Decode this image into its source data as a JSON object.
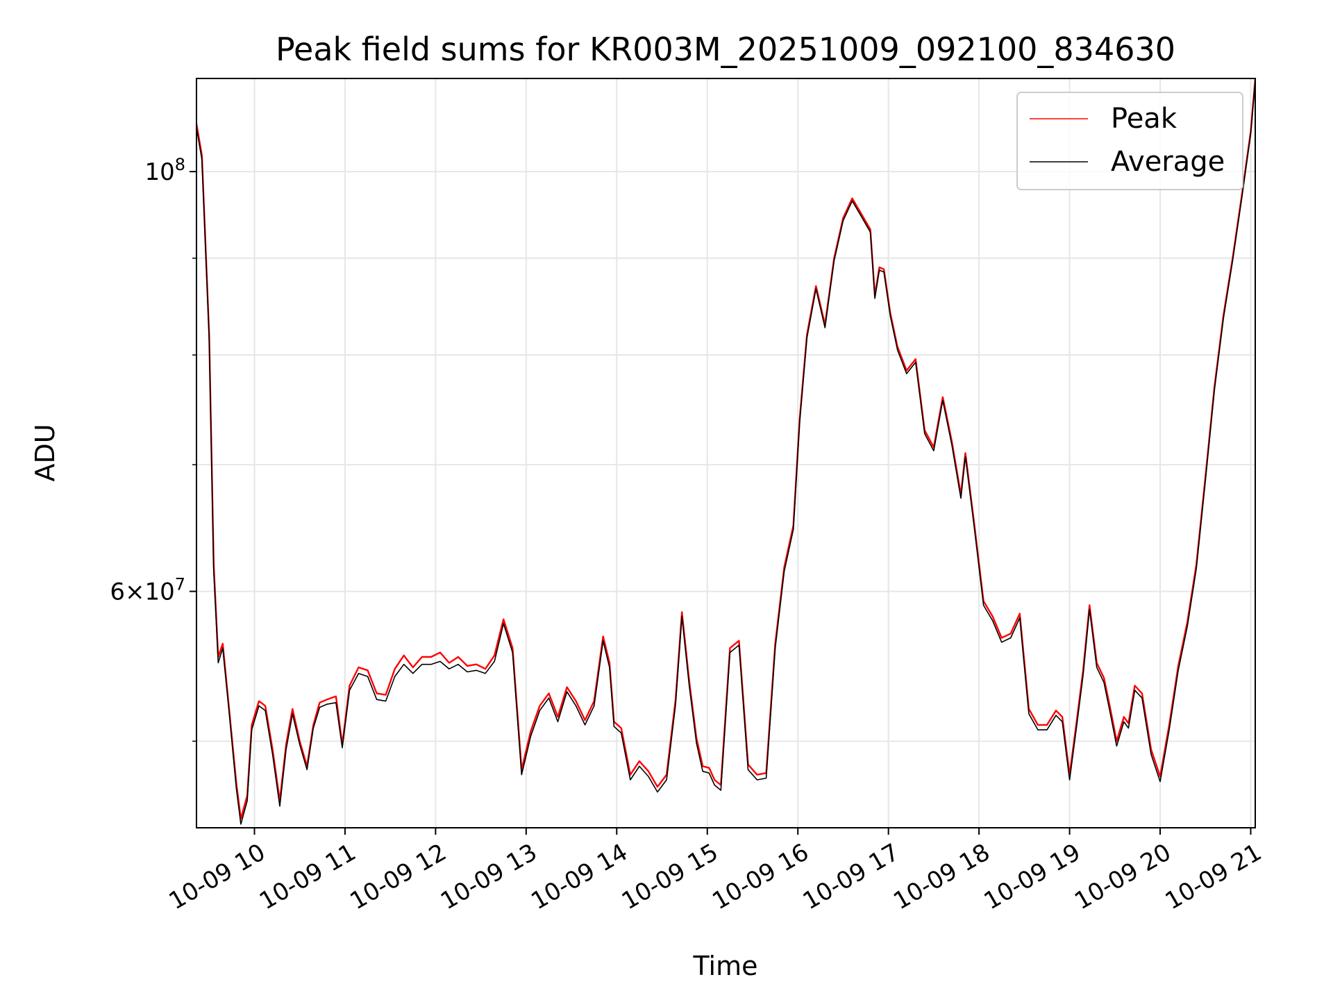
{
  "chart_data": {
    "type": "line",
    "title": "Peak field sums for KR003M_20251009_092100_834630",
    "xlabel": "Time",
    "ylabel": "ADU",
    "yscale": "log",
    "ylim": [
      45000000,
      112000000
    ],
    "xlim": [
      9.36,
      21.05
    ],
    "x_unit": "hour of 2025-10-09",
    "grid": true,
    "legend_position": "top-right",
    "x_tick_values": [
      10,
      11,
      12,
      13,
      14,
      15,
      16,
      17,
      18,
      19,
      20,
      21
    ],
    "x_tick_labels": [
      "10-09 10",
      "10-09 11",
      "10-09 12",
      "10-09 13",
      "10-09 14",
      "10-09 15",
      "10-09 16",
      "10-09 17",
      "10-09 18",
      "10-09 19",
      "10-09 20",
      "10-09 21"
    ],
    "y_major_ticks": [
      {
        "value": 60000000,
        "mantissa": "6",
        "exponent": "7"
      },
      {
        "value": 100000000,
        "mantissa": "",
        "exponent": "8"
      }
    ],
    "y_minor_ticks": [
      50000000,
      70000000,
      80000000,
      90000000
    ],
    "x": [
      9.36,
      9.42,
      9.5,
      9.55,
      9.6,
      9.65,
      9.72,
      9.8,
      9.85,
      9.92,
      9.97,
      10.05,
      10.12,
      10.2,
      10.28,
      10.35,
      10.42,
      10.5,
      10.58,
      10.65,
      10.72,
      10.8,
      10.9,
      10.97,
      11.05,
      11.15,
      11.25,
      11.35,
      11.45,
      11.55,
      11.65,
      11.75,
      11.85,
      11.95,
      12.05,
      12.15,
      12.25,
      12.35,
      12.45,
      12.55,
      12.65,
      12.75,
      12.85,
      12.95,
      13.05,
      13.15,
      13.25,
      13.35,
      13.45,
      13.55,
      13.65,
      13.75,
      13.85,
      13.92,
      13.97,
      14.05,
      14.15,
      14.25,
      14.35,
      14.45,
      14.55,
      14.65,
      14.72,
      14.8,
      14.88,
      14.95,
      15.02,
      15.08,
      15.15,
      15.25,
      15.35,
      15.45,
      15.55,
      15.65,
      15.75,
      15.85,
      15.95,
      16.02,
      16.1,
      16.2,
      16.3,
      16.4,
      16.5,
      16.6,
      16.7,
      16.8,
      16.85,
      16.9,
      16.95,
      17.02,
      17.1,
      17.2,
      17.3,
      17.4,
      17.5,
      17.6,
      17.7,
      17.8,
      17.85,
      17.95,
      18.05,
      18.15,
      18.25,
      18.35,
      18.45,
      18.55,
      18.65,
      18.75,
      18.85,
      18.92,
      19.0,
      19.08,
      19.15,
      19.22,
      19.3,
      19.38,
      19.45,
      19.52,
      19.6,
      19.65,
      19.72,
      19.8,
      19.9,
      20.0,
      20.1,
      20.2,
      20.3,
      20.4,
      20.5,
      20.6,
      20.7,
      20.8,
      20.9,
      21.0,
      21.05
    ],
    "series": [
      {
        "name": "Peak",
        "color": "#ff0000",
        "values": [
          106,
          102,
          82,
          62,
          55.4,
          56.3,
          52.0,
          47.5,
          45.5,
          46.8,
          51.0,
          52.5,
          52.2,
          49.5,
          46.5,
          49.8,
          52.0,
          50.0,
          48.5,
          51.0,
          52.4,
          52.6,
          52.8,
          49.8,
          53.5,
          54.7,
          54.5,
          53.0,
          52.9,
          54.6,
          55.5,
          54.7,
          55.4,
          55.4,
          55.7,
          55.0,
          55.4,
          54.8,
          54.9,
          54.6,
          55.5,
          58.0,
          56.0,
          48.3,
          50.6,
          52.2,
          53.0,
          51.5,
          53.4,
          52.5,
          51.3,
          52.5,
          56.8,
          55.0,
          51.2,
          50.8,
          48.0,
          48.8,
          48.2,
          47.3,
          48.0,
          52.6,
          58.5,
          53.8,
          50.2,
          48.5,
          48.4,
          47.7,
          47.4,
          56.0,
          56.5,
          48.6,
          48.0,
          48.1,
          56.3,
          61.8,
          65.0,
          74.0,
          82.0,
          87.0,
          83.0,
          90.0,
          94.5,
          96.8,
          95.0,
          93.2,
          86.0,
          89.0,
          88.8,
          84.2,
          80.8,
          78.5,
          79.6,
          73.0,
          71.5,
          76.0,
          72.0,
          67.5,
          71.0,
          65.0,
          59.3,
          58.2,
          56.7,
          57.0,
          58.4,
          52.0,
          51.0,
          51.0,
          51.9,
          51.5,
          48.0,
          51.3,
          54.5,
          59.0,
          55.0,
          54.0,
          52.0,
          50.0,
          51.5,
          51.1,
          53.5,
          53.0,
          49.5,
          47.9,
          51.0,
          54.8,
          57.8,
          62.0,
          69.0,
          77.0,
          84.0,
          90.0,
          97.0,
          105.0,
          112.0
        ]
      },
      {
        "name": "Average",
        "color": "#000000",
        "values": [
          105.5,
          101.5,
          81.5,
          61.5,
          55.0,
          56.0,
          51.8,
          47.2,
          45.2,
          46.5,
          50.7,
          52.2,
          51.9,
          49.2,
          46.2,
          49.5,
          51.7,
          49.8,
          48.3,
          50.8,
          52.1,
          52.3,
          52.4,
          49.6,
          53.2,
          54.3,
          54.1,
          52.6,
          52.5,
          54.1,
          54.9,
          54.3,
          54.9,
          54.9,
          55.1,
          54.6,
          54.9,
          54.4,
          54.5,
          54.3,
          55.1,
          57.7,
          55.7,
          48.0,
          50.3,
          51.9,
          52.7,
          51.2,
          53.1,
          52.2,
          51.0,
          52.2,
          56.5,
          54.7,
          50.9,
          50.5,
          47.7,
          48.5,
          47.9,
          47.0,
          47.7,
          52.3,
          58.2,
          53.5,
          49.9,
          48.2,
          48.1,
          47.4,
          47.1,
          55.7,
          56.2,
          48.3,
          47.7,
          47.8,
          56.0,
          61.5,
          64.7,
          73.7,
          81.7,
          86.7,
          82.7,
          89.7,
          94.2,
          96.5,
          94.7,
          92.9,
          85.7,
          88.7,
          88.5,
          83.9,
          80.5,
          78.2,
          79.3,
          72.7,
          71.2,
          75.7,
          71.7,
          67.2,
          70.7,
          64.7,
          59.0,
          57.9,
          56.4,
          56.7,
          58.1,
          51.7,
          50.7,
          50.7,
          51.6,
          51.2,
          47.7,
          51.0,
          54.2,
          58.7,
          54.7,
          53.7,
          51.7,
          49.7,
          51.2,
          50.8,
          53.2,
          52.7,
          49.2,
          47.6,
          50.7,
          54.5,
          57.5,
          61.7,
          68.7,
          76.7,
          83.7,
          89.7,
          96.7,
          104.7,
          111.7
        ]
      }
    ]
  }
}
